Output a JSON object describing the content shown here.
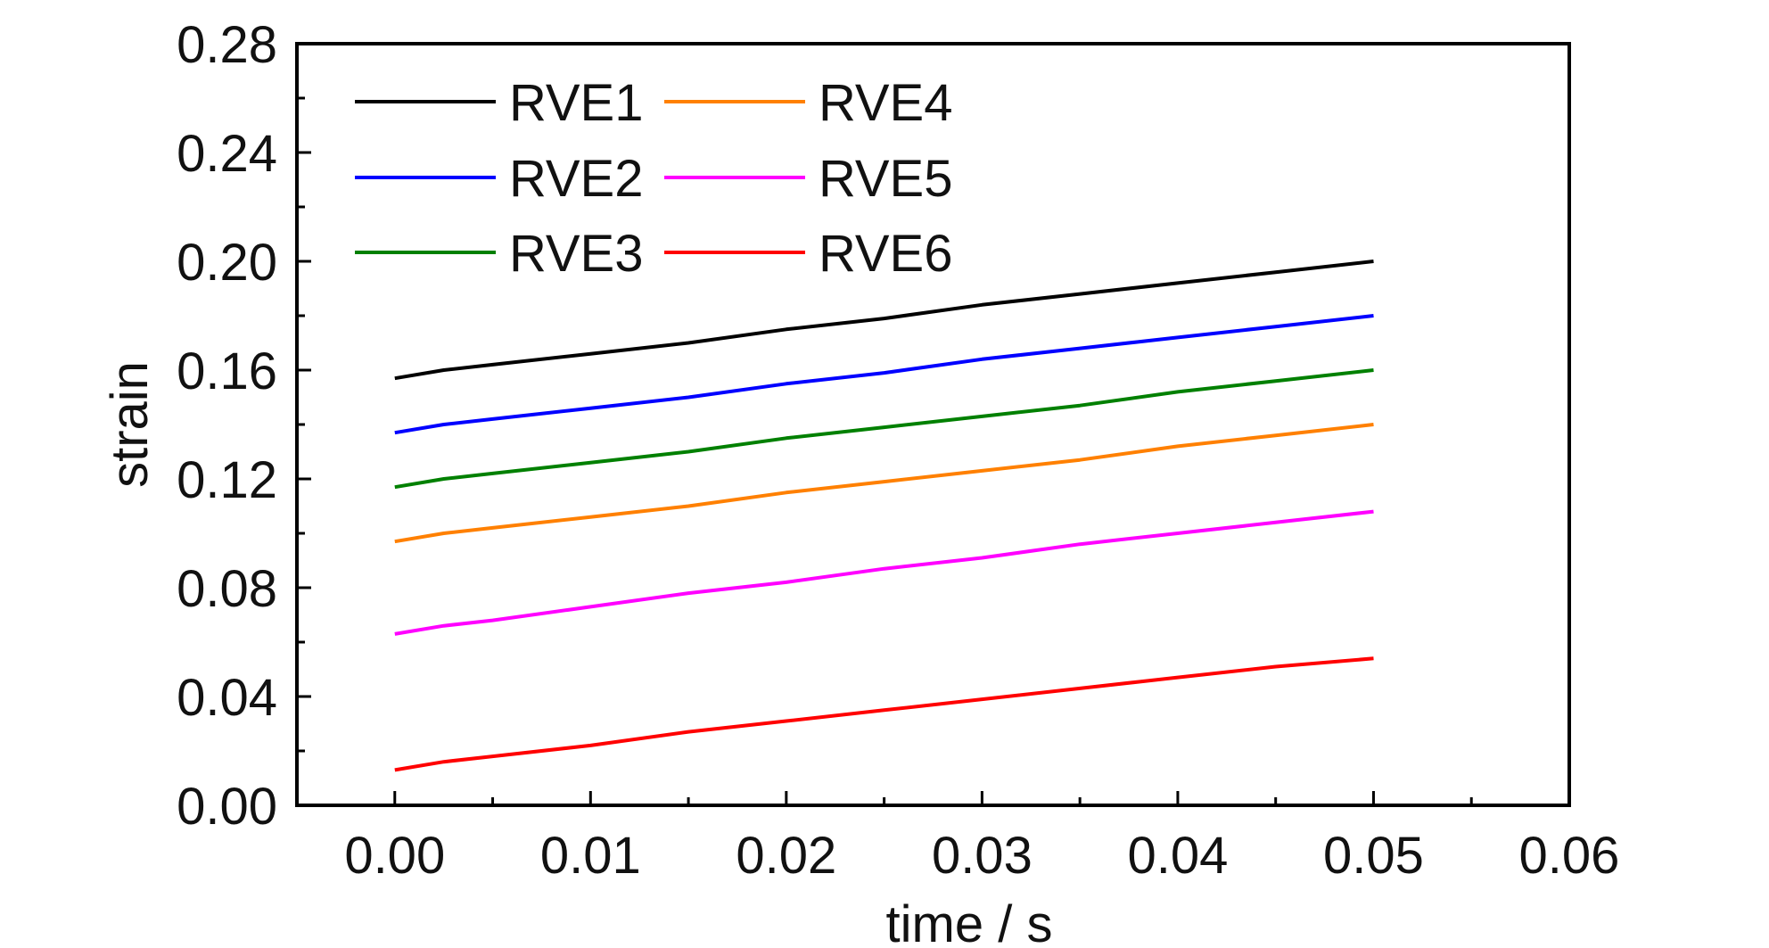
{
  "chart_data": {
    "type": "line",
    "xlabel": "time / s",
    "ylabel": "strain",
    "xlim": [
      -0.005,
      0.06
    ],
    "ylim": [
      0.0,
      0.28
    ],
    "xticks": [
      "0.00",
      "0.01",
      "0.02",
      "0.03",
      "0.04",
      "0.05",
      "0.06"
    ],
    "yticks": [
      "0.00",
      "0.04",
      "0.08",
      "0.12",
      "0.16",
      "0.20",
      "0.24",
      "0.28"
    ],
    "grid": false,
    "legend_position": "top-left",
    "x": [
      0.0,
      0.0025,
      0.005,
      0.01,
      0.015,
      0.02,
      0.025,
      0.03,
      0.035,
      0.04,
      0.045,
      0.05
    ],
    "series": [
      {
        "name": "RVE1",
        "color": "#000000",
        "values": [
          0.157,
          0.16,
          0.162,
          0.166,
          0.17,
          0.175,
          0.179,
          0.184,
          0.188,
          0.192,
          0.196,
          0.2
        ]
      },
      {
        "name": "RVE2",
        "color": "#0000ff",
        "values": [
          0.137,
          0.14,
          0.142,
          0.146,
          0.15,
          0.155,
          0.159,
          0.164,
          0.168,
          0.172,
          0.176,
          0.18
        ]
      },
      {
        "name": "RVE3",
        "color": "#008000",
        "values": [
          0.117,
          0.12,
          0.122,
          0.126,
          0.13,
          0.135,
          0.139,
          0.143,
          0.147,
          0.152,
          0.156,
          0.16
        ]
      },
      {
        "name": "RVE4",
        "color": "#ff8000",
        "values": [
          0.097,
          0.1,
          0.102,
          0.106,
          0.11,
          0.115,
          0.119,
          0.123,
          0.127,
          0.132,
          0.136,
          0.14
        ]
      },
      {
        "name": "RVE5",
        "color": "#ff00ff",
        "values": [
          0.063,
          0.066,
          0.068,
          0.073,
          0.078,
          0.082,
          0.087,
          0.091,
          0.096,
          0.1,
          0.104,
          0.108
        ]
      },
      {
        "name": "RVE6",
        "color": "#ff0000",
        "values": [
          0.013,
          0.016,
          0.018,
          0.022,
          0.027,
          0.031,
          0.035,
          0.039,
          0.043,
          0.047,
          0.051,
          0.054
        ]
      }
    ]
  }
}
